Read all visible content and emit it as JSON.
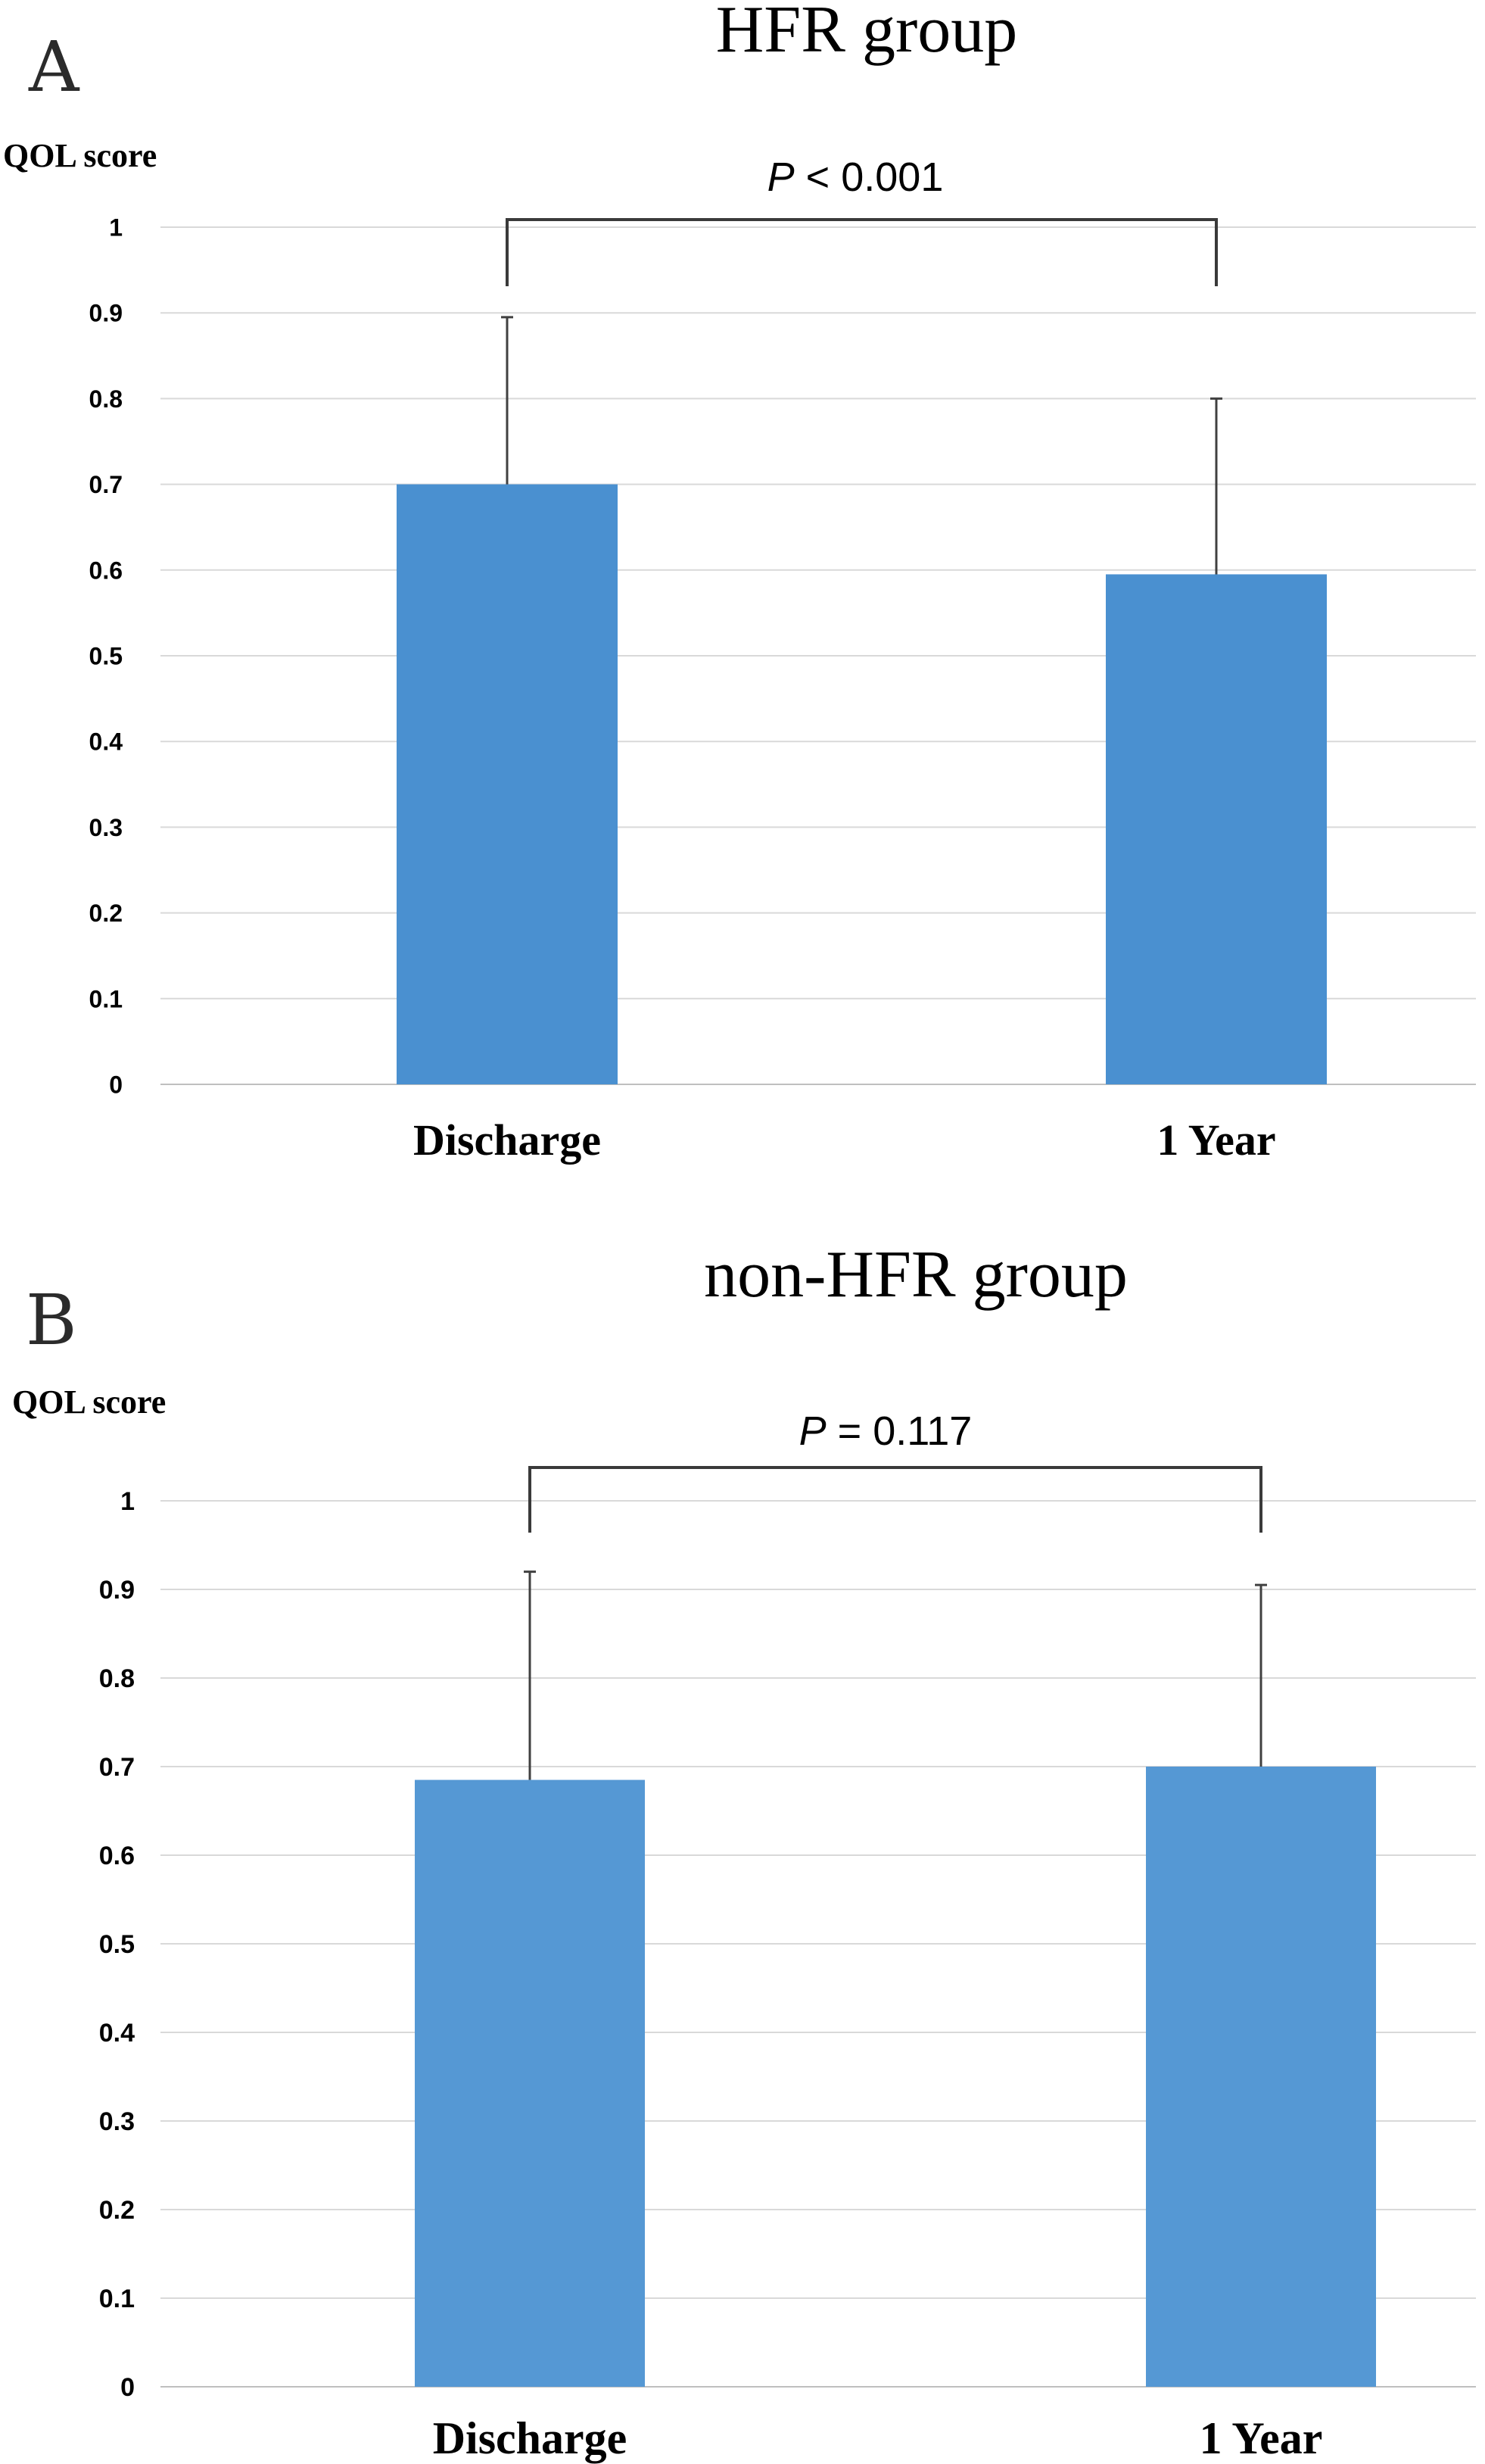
{
  "chart_data": [
    {
      "type": "bar",
      "panel": "A",
      "title": "HFR group",
      "ylabel": "QOL score",
      "ylim": [
        0,
        1
      ],
      "yticks": [
        "0",
        "0.1",
        "0.2",
        "0.3",
        "0.4",
        "0.5",
        "0.6",
        "0.7",
        "0.8",
        "0.9",
        "1"
      ],
      "categories": [
        "Discharge",
        "1 Year"
      ],
      "values": [
        0.7,
        0.595
      ],
      "error_upper": [
        0.195,
        0.205
      ],
      "significance": {
        "italic": "P",
        "text": " < 0.001"
      },
      "grid": true,
      "bar_color": "#4a90d0"
    },
    {
      "type": "bar",
      "panel": "B",
      "title": "non-HFR group",
      "ylabel": "QOL score",
      "ylim": [
        0,
        1
      ],
      "yticks": [
        "0",
        "0.1",
        "0.2",
        "0.3",
        "0.4",
        "0.5",
        "0.6",
        "0.7",
        "0.8",
        "0.9",
        "1"
      ],
      "categories": [
        "Discharge",
        "1 Year"
      ],
      "values": [
        0.685,
        0.7
      ],
      "error_upper": [
        0.235,
        0.205
      ],
      "significance": {
        "italic": "P",
        "text": " = 0.117"
      },
      "grid": true,
      "bar_color": "#5598d4"
    }
  ]
}
